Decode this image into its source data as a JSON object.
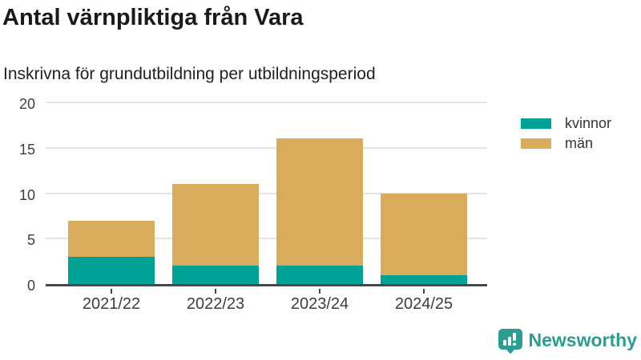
{
  "header": {
    "title": "Antal värnpliktiga från Vara",
    "subtitle": "Inskrivna för grundutbildning per utbildningsperiod"
  },
  "chart_data": {
    "type": "bar",
    "stacked": true,
    "title": "Antal värnpliktiga från Vara",
    "subtitle": "Inskrivna för grundutbildning per utbildningsperiod",
    "categories": [
      "2021/22",
      "2022/23",
      "2023/24",
      "2024/25"
    ],
    "series": [
      {
        "name": "kvinnor",
        "color": "#00a296",
        "values": [
          3,
          2,
          2,
          1
        ]
      },
      {
        "name": "män",
        "color": "#d9ab5c",
        "values": [
          4,
          9,
          14,
          9
        ]
      }
    ],
    "stack_totals": [
      7,
      11,
      16,
      10
    ],
    "xlabel": "",
    "ylabel": "",
    "yticks": [
      0,
      5,
      10,
      15,
      20
    ],
    "ylim": [
      0,
      20
    ],
    "grid": true,
    "legend_position": "right"
  },
  "colors": {
    "kvinnor": "#00a296",
    "man": "#d9ab5c",
    "axis_line": "#484848",
    "gridline": "#e4e4e4",
    "text_dark": "#1a1a1a",
    "axis_text": "#3d3d3d",
    "brand_teal": "#2b9d92"
  },
  "footer": {
    "brand": "Newsworthy"
  }
}
